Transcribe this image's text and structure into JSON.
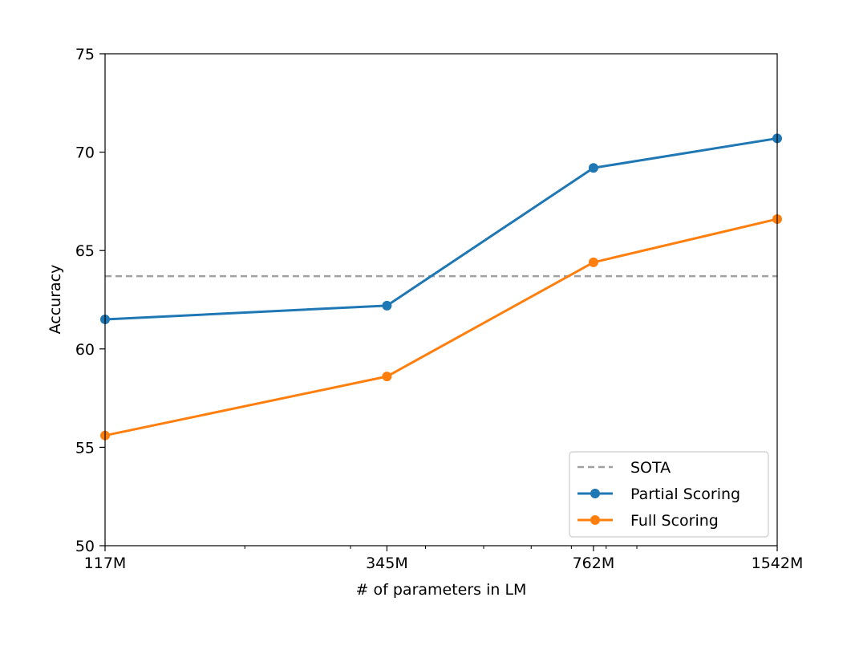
{
  "chart_data": {
    "type": "line",
    "x_scale": "log",
    "xlabel": "# of parameters in LM",
    "ylabel": "Accuracy",
    "x": [
      117,
      345,
      762,
      1542
    ],
    "x_tick_labels": [
      "117M",
      "345M",
      "762M",
      "1542M"
    ],
    "xlim": [
      117,
      1542
    ],
    "ylim": [
      50,
      75
    ],
    "y_ticks": [
      50,
      55,
      60,
      65,
      70,
      75
    ],
    "grid": false,
    "legend_position": "lower-right",
    "reference_line": {
      "name": "SOTA",
      "value": 63.7,
      "color": "#a0a0a0",
      "style": "dashed"
    },
    "series": [
      {
        "name": "Partial Scoring",
        "color": "#1f77b4",
        "values": [
          61.5,
          62.2,
          69.2,
          70.7
        ]
      },
      {
        "name": "Full Scoring",
        "color": "#ff7f0e",
        "values": [
          55.6,
          58.6,
          64.4,
          66.6
        ]
      }
    ]
  }
}
